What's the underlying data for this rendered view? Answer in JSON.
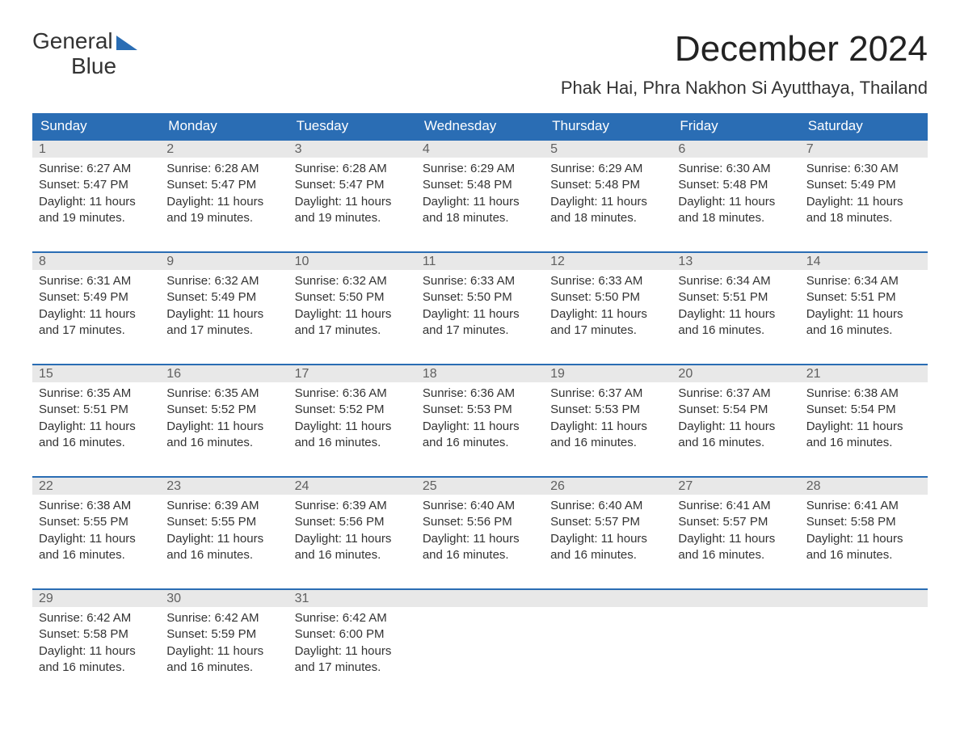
{
  "logo": {
    "line1": "General",
    "line2": "Blue"
  },
  "title": "December 2024",
  "location": "Phak Hai, Phra Nakhon Si Ayutthaya, Thailand",
  "weekdays": [
    "Sunday",
    "Monday",
    "Tuesday",
    "Wednesday",
    "Thursday",
    "Friday",
    "Saturday"
  ],
  "colors": {
    "header_bg": "#2a6db4",
    "header_text": "#ffffff",
    "week_border": "#2a6db4",
    "daynum_bg": "#e8e8e8",
    "daynum_text": "#606060",
    "body_text": "#333333",
    "background": "#ffffff"
  },
  "typography": {
    "title_fontsize": 44,
    "location_fontsize": 22,
    "weekday_fontsize": 17,
    "cell_fontsize": 15
  },
  "layout": {
    "columns": 7,
    "rows": 5,
    "first_weekday": "Sunday"
  },
  "days": [
    {
      "n": 1,
      "sunrise": "6:27 AM",
      "sunset": "5:47 PM",
      "daylight": "11 hours and 19 minutes."
    },
    {
      "n": 2,
      "sunrise": "6:28 AM",
      "sunset": "5:47 PM",
      "daylight": "11 hours and 19 minutes."
    },
    {
      "n": 3,
      "sunrise": "6:28 AM",
      "sunset": "5:47 PM",
      "daylight": "11 hours and 19 minutes."
    },
    {
      "n": 4,
      "sunrise": "6:29 AM",
      "sunset": "5:48 PM",
      "daylight": "11 hours and 18 minutes."
    },
    {
      "n": 5,
      "sunrise": "6:29 AM",
      "sunset": "5:48 PM",
      "daylight": "11 hours and 18 minutes."
    },
    {
      "n": 6,
      "sunrise": "6:30 AM",
      "sunset": "5:48 PM",
      "daylight": "11 hours and 18 minutes."
    },
    {
      "n": 7,
      "sunrise": "6:30 AM",
      "sunset": "5:49 PM",
      "daylight": "11 hours and 18 minutes."
    },
    {
      "n": 8,
      "sunrise": "6:31 AM",
      "sunset": "5:49 PM",
      "daylight": "11 hours and 17 minutes."
    },
    {
      "n": 9,
      "sunrise": "6:32 AM",
      "sunset": "5:49 PM",
      "daylight": "11 hours and 17 minutes."
    },
    {
      "n": 10,
      "sunrise": "6:32 AM",
      "sunset": "5:50 PM",
      "daylight": "11 hours and 17 minutes."
    },
    {
      "n": 11,
      "sunrise": "6:33 AM",
      "sunset": "5:50 PM",
      "daylight": "11 hours and 17 minutes."
    },
    {
      "n": 12,
      "sunrise": "6:33 AM",
      "sunset": "5:50 PM",
      "daylight": "11 hours and 17 minutes."
    },
    {
      "n": 13,
      "sunrise": "6:34 AM",
      "sunset": "5:51 PM",
      "daylight": "11 hours and 16 minutes."
    },
    {
      "n": 14,
      "sunrise": "6:34 AM",
      "sunset": "5:51 PM",
      "daylight": "11 hours and 16 minutes."
    },
    {
      "n": 15,
      "sunrise": "6:35 AM",
      "sunset": "5:51 PM",
      "daylight": "11 hours and 16 minutes."
    },
    {
      "n": 16,
      "sunrise": "6:35 AM",
      "sunset": "5:52 PM",
      "daylight": "11 hours and 16 minutes."
    },
    {
      "n": 17,
      "sunrise": "6:36 AM",
      "sunset": "5:52 PM",
      "daylight": "11 hours and 16 minutes."
    },
    {
      "n": 18,
      "sunrise": "6:36 AM",
      "sunset": "5:53 PM",
      "daylight": "11 hours and 16 minutes."
    },
    {
      "n": 19,
      "sunrise": "6:37 AM",
      "sunset": "5:53 PM",
      "daylight": "11 hours and 16 minutes."
    },
    {
      "n": 20,
      "sunrise": "6:37 AM",
      "sunset": "5:54 PM",
      "daylight": "11 hours and 16 minutes."
    },
    {
      "n": 21,
      "sunrise": "6:38 AM",
      "sunset": "5:54 PM",
      "daylight": "11 hours and 16 minutes."
    },
    {
      "n": 22,
      "sunrise": "6:38 AM",
      "sunset": "5:55 PM",
      "daylight": "11 hours and 16 minutes."
    },
    {
      "n": 23,
      "sunrise": "6:39 AM",
      "sunset": "5:55 PM",
      "daylight": "11 hours and 16 minutes."
    },
    {
      "n": 24,
      "sunrise": "6:39 AM",
      "sunset": "5:56 PM",
      "daylight": "11 hours and 16 minutes."
    },
    {
      "n": 25,
      "sunrise": "6:40 AM",
      "sunset": "5:56 PM",
      "daylight": "11 hours and 16 minutes."
    },
    {
      "n": 26,
      "sunrise": "6:40 AM",
      "sunset": "5:57 PM",
      "daylight": "11 hours and 16 minutes."
    },
    {
      "n": 27,
      "sunrise": "6:41 AM",
      "sunset": "5:57 PM",
      "daylight": "11 hours and 16 minutes."
    },
    {
      "n": 28,
      "sunrise": "6:41 AM",
      "sunset": "5:58 PM",
      "daylight": "11 hours and 16 minutes."
    },
    {
      "n": 29,
      "sunrise": "6:42 AM",
      "sunset": "5:58 PM",
      "daylight": "11 hours and 16 minutes."
    },
    {
      "n": 30,
      "sunrise": "6:42 AM",
      "sunset": "5:59 PM",
      "daylight": "11 hours and 16 minutes."
    },
    {
      "n": 31,
      "sunrise": "6:42 AM",
      "sunset": "6:00 PM",
      "daylight": "11 hours and 17 minutes."
    }
  ],
  "labels": {
    "sunrise": "Sunrise: ",
    "sunset": "Sunset: ",
    "daylight": "Daylight: "
  }
}
